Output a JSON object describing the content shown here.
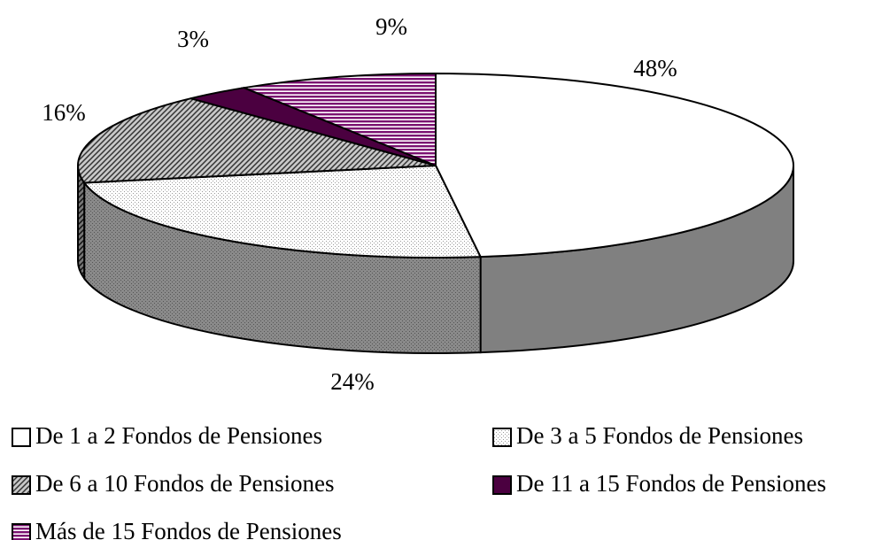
{
  "chart_data": {
    "type": "pie",
    "categories": [
      "De 1 a 2 Fondos de Pensiones",
      "De 3 a 5 Fondos de Pensiones",
      "De 6 a 10 Fondos de Pensiones",
      "De 11 a 15 Fondos de Pensiones",
      "Más de 15 Fondos de Pensiones"
    ],
    "values": [
      48,
      24,
      16,
      3,
      9
    ],
    "value_labels": [
      "48%",
      "24%",
      "16%",
      "3%",
      "9%"
    ]
  }
}
